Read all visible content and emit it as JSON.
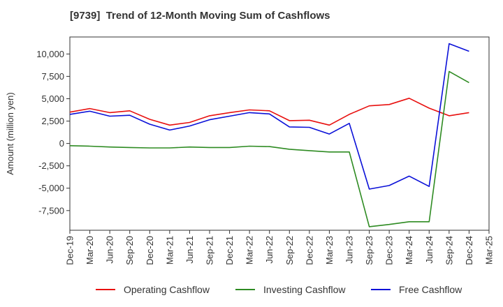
{
  "chart_data": {
    "type": "line",
    "title": "[9739]  Trend of 12-Month Moving Sum of Cashflows",
    "ylabel": "Amount (million yen)",
    "xlabel": "",
    "ylim": [
      -9700,
      11900
    ],
    "grid": true,
    "legend_position": "bottom",
    "x_tick_labels": [
      "Dec-19",
      "Mar-20",
      "Jun-20",
      "Sep-20",
      "Dec-20",
      "Mar-21",
      "Jun-21",
      "Sep-21",
      "Dec-21",
      "Mar-22",
      "Jun-22",
      "Sep-22",
      "Dec-22",
      "Mar-23",
      "Jun-23",
      "Sep-23",
      "Dec-23",
      "Mar-24",
      "Jun-24",
      "Sep-24",
      "Dec-24",
      "Mar-25"
    ],
    "y_ticks": [
      10000,
      7500,
      5000,
      2500,
      0,
      -2500,
      -5000,
      -7500
    ],
    "y_tick_labels": [
      "10,000",
      "7,500",
      "5,000",
      "2,500",
      "0",
      "-2,500",
      "-5,000",
      "-7,500"
    ],
    "x": [
      "Dec-19",
      "Mar-20",
      "Jun-20",
      "Sep-20",
      "Dec-20",
      "Mar-21",
      "Jun-21",
      "Sep-21",
      "Dec-21",
      "Mar-22",
      "Jun-22",
      "Sep-22",
      "Dec-22",
      "Mar-23",
      "Jun-23",
      "Sep-23",
      "Dec-23",
      "Mar-24",
      "Jun-24",
      "Sep-24",
      "Dec-24"
    ],
    "series": [
      {
        "name": "Operating Cashflow",
        "color": "#e8100f",
        "values": [
          3500,
          3900,
          3450,
          3650,
          2700,
          2050,
          2350,
          3100,
          3450,
          3750,
          3650,
          2550,
          2600,
          2050,
          3250,
          4200,
          4350,
          5050,
          3950,
          3100,
          3450
        ]
      },
      {
        "name": "Investing Cashflow",
        "color": "#2e8b22",
        "values": [
          -250,
          -300,
          -400,
          -450,
          -500,
          -500,
          -400,
          -450,
          -450,
          -300,
          -350,
          -650,
          -800,
          -950,
          -950,
          -9300,
          -9050,
          -8750,
          -8750,
          8050,
          6800
        ]
      },
      {
        "name": "Free Cashflow",
        "color": "#0a10d8",
        "values": [
          3250,
          3600,
          3050,
          3150,
          2150,
          1500,
          1950,
          2650,
          3050,
          3450,
          3300,
          1850,
          1800,
          1050,
          2250,
          -5100,
          -4700,
          -3650,
          -4800,
          11150,
          10300
        ]
      }
    ]
  }
}
